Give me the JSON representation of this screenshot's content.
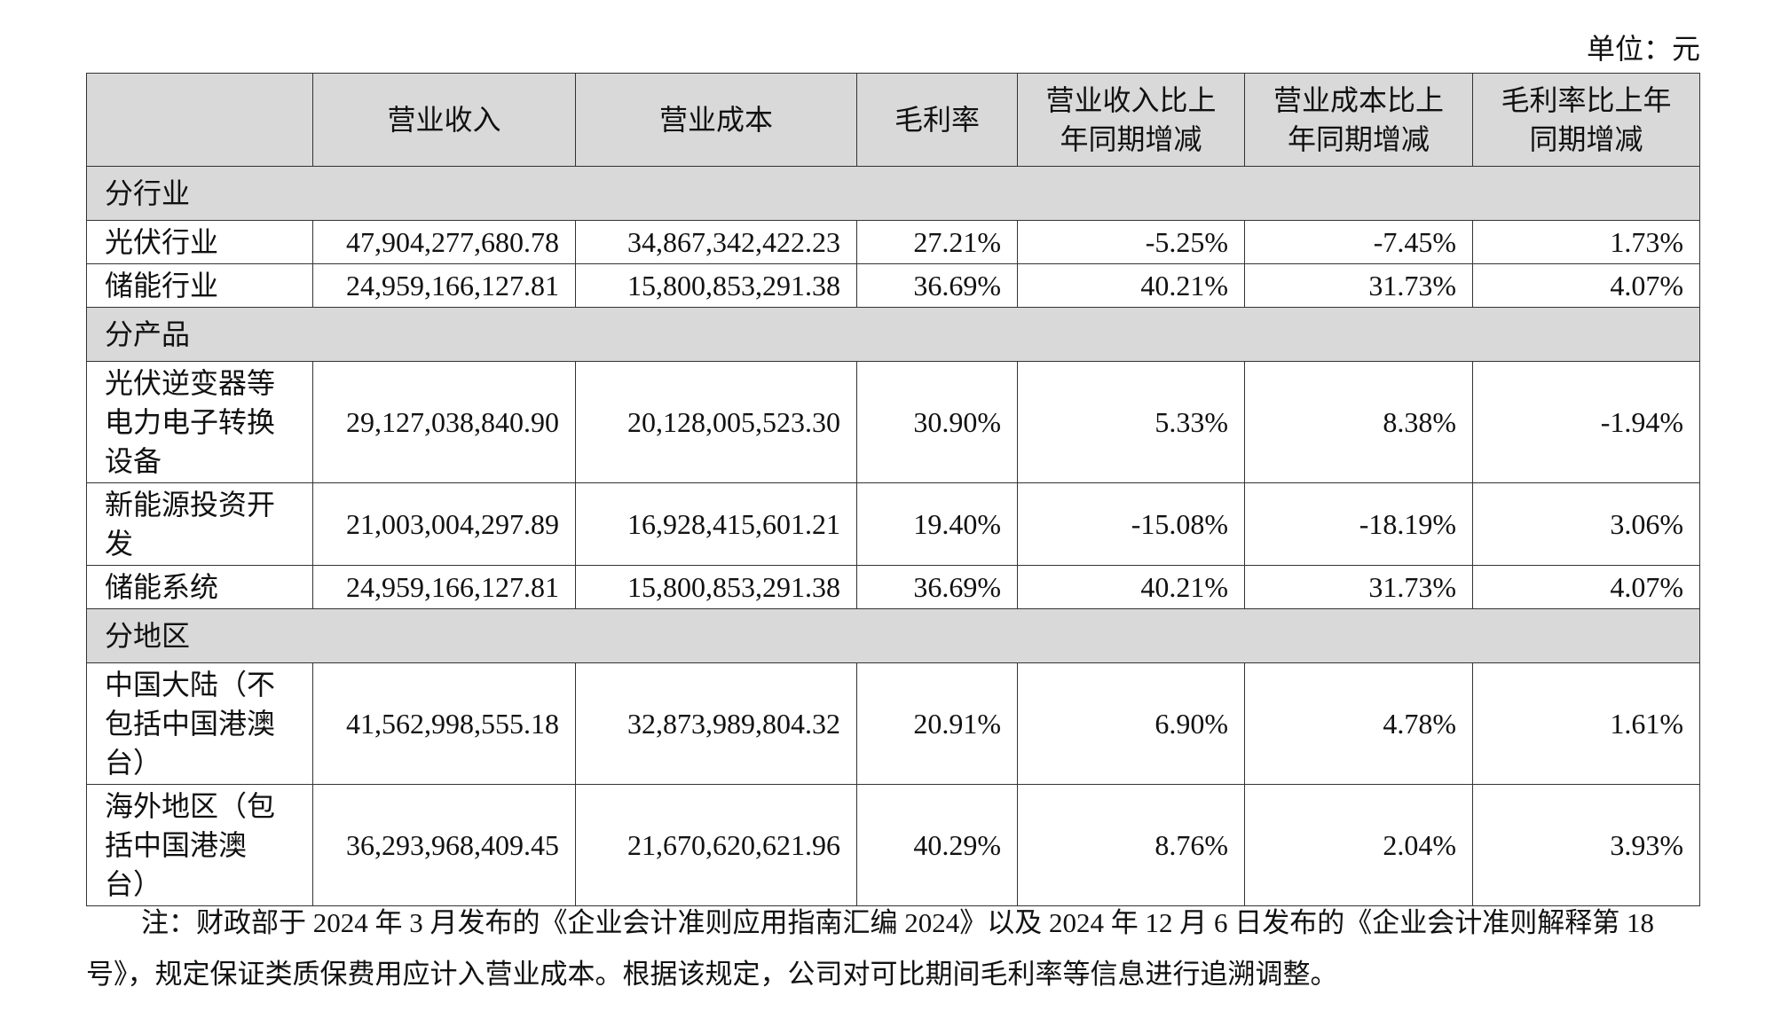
{
  "unit": "单位：元",
  "table": {
    "header": [
      "营业收入",
      "营业成本",
      "毛利率",
      "营业收入比上年同期增减",
      "营业成本比上年同期增减",
      "毛利率比上年同期增减"
    ],
    "sections": [
      {
        "title": "分行业",
        "rows": [
          {
            "label": "光伏行业",
            "values": [
              "47,904,277,680.78",
              "34,867,342,422.23",
              "27.21%",
              "-5.25%",
              "-7.45%",
              "1.73%"
            ]
          },
          {
            "label": "储能行业",
            "values": [
              "24,959,166,127.81",
              "15,800,853,291.38",
              "36.69%",
              "40.21%",
              "31.73%",
              "4.07%"
            ]
          }
        ]
      },
      {
        "title": "分产品",
        "rows": [
          {
            "label": "光伏逆变器等电力电子转换设备",
            "values": [
              "29,127,038,840.90",
              "20,128,005,523.30",
              "30.90%",
              "5.33%",
              "8.38%",
              "-1.94%"
            ]
          },
          {
            "label": "新能源投资开发",
            "values": [
              "21,003,004,297.89",
              "16,928,415,601.21",
              "19.40%",
              "-15.08%",
              "-18.19%",
              "3.06%"
            ]
          },
          {
            "label": "储能系统",
            "values": [
              "24,959,166,127.81",
              "15,800,853,291.38",
              "36.69%",
              "40.21%",
              "31.73%",
              "4.07%"
            ]
          }
        ]
      },
      {
        "title": "分地区",
        "rows": [
          {
            "label": "中国大陆（不包括中国港澳台）",
            "values": [
              "41,562,998,555.18",
              "32,873,989,804.32",
              "20.91%",
              "6.90%",
              "4.78%",
              "1.61%"
            ]
          },
          {
            "label": "海外地区（包括中国港澳台）",
            "values": [
              "36,293,968,409.45",
              "21,670,620,621.96",
              "40.29%",
              "8.76%",
              "2.04%",
              "3.93%"
            ]
          }
        ]
      }
    ]
  },
  "note": "注：财政部于 2024 年 3 月发布的《企业会计准则应用指南汇编 2024》以及 2024 年 12 月 6 日发布的《企业会计准则解释第 18 号》，规定保证类质保费用应计入营业成本。根据该规定，公司对可比期间毛利率等信息进行追溯调整。"
}
